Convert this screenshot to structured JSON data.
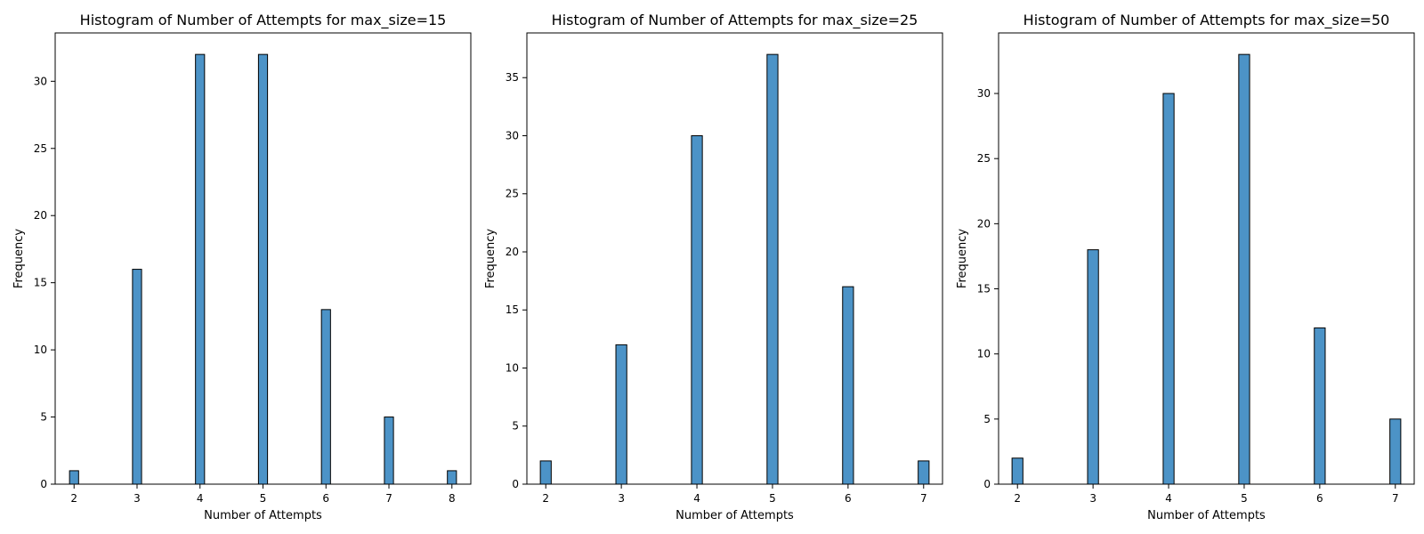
{
  "chart_data": [
    {
      "type": "bar",
      "title": "Histogram of Number of Attempts for max_size=15",
      "xlabel": "Number of Attempts",
      "ylabel": "Frequency",
      "x": [
        2,
        3,
        4,
        5,
        6,
        7,
        8
      ],
      "values": [
        1,
        16,
        32,
        32,
        13,
        5,
        1
      ],
      "xlim": [
        1.7,
        8.3
      ],
      "ylim": [
        0,
        33.6
      ],
      "xticks": [
        2,
        3,
        4,
        5,
        6,
        7,
        8
      ],
      "yticks": [
        0,
        5,
        10,
        15,
        20,
        25,
        30
      ],
      "grid": false,
      "bar_color": "#4c93c7"
    },
    {
      "type": "bar",
      "title": "Histogram of Number of Attempts for max_size=25",
      "xlabel": "Number of Attempts",
      "ylabel": "Frequency",
      "x": [
        2,
        3,
        4,
        5,
        6,
        7
      ],
      "values": [
        2,
        12,
        30,
        37,
        17,
        2
      ],
      "xlim": [
        1.75,
        7.25
      ],
      "ylim": [
        0,
        38.85
      ],
      "xticks": [
        2,
        3,
        4,
        5,
        6,
        7
      ],
      "yticks": [
        0,
        5,
        10,
        15,
        20,
        25,
        30,
        35
      ],
      "grid": false,
      "bar_color": "#4c93c7"
    },
    {
      "type": "bar",
      "title": "Histogram of Number of Attempts for max_size=50",
      "xlabel": "Number of Attempts",
      "ylabel": "Frequency",
      "x": [
        2,
        3,
        4,
        5,
        6,
        7
      ],
      "values": [
        2,
        18,
        30,
        33,
        12,
        5
      ],
      "xlim": [
        1.75,
        7.25
      ],
      "ylim": [
        0,
        34.65
      ],
      "xticks": [
        2,
        3,
        4,
        5,
        6,
        7
      ],
      "yticks": [
        0,
        5,
        10,
        15,
        20,
        25,
        30
      ],
      "grid": false,
      "bar_color": "#4c93c7"
    }
  ]
}
